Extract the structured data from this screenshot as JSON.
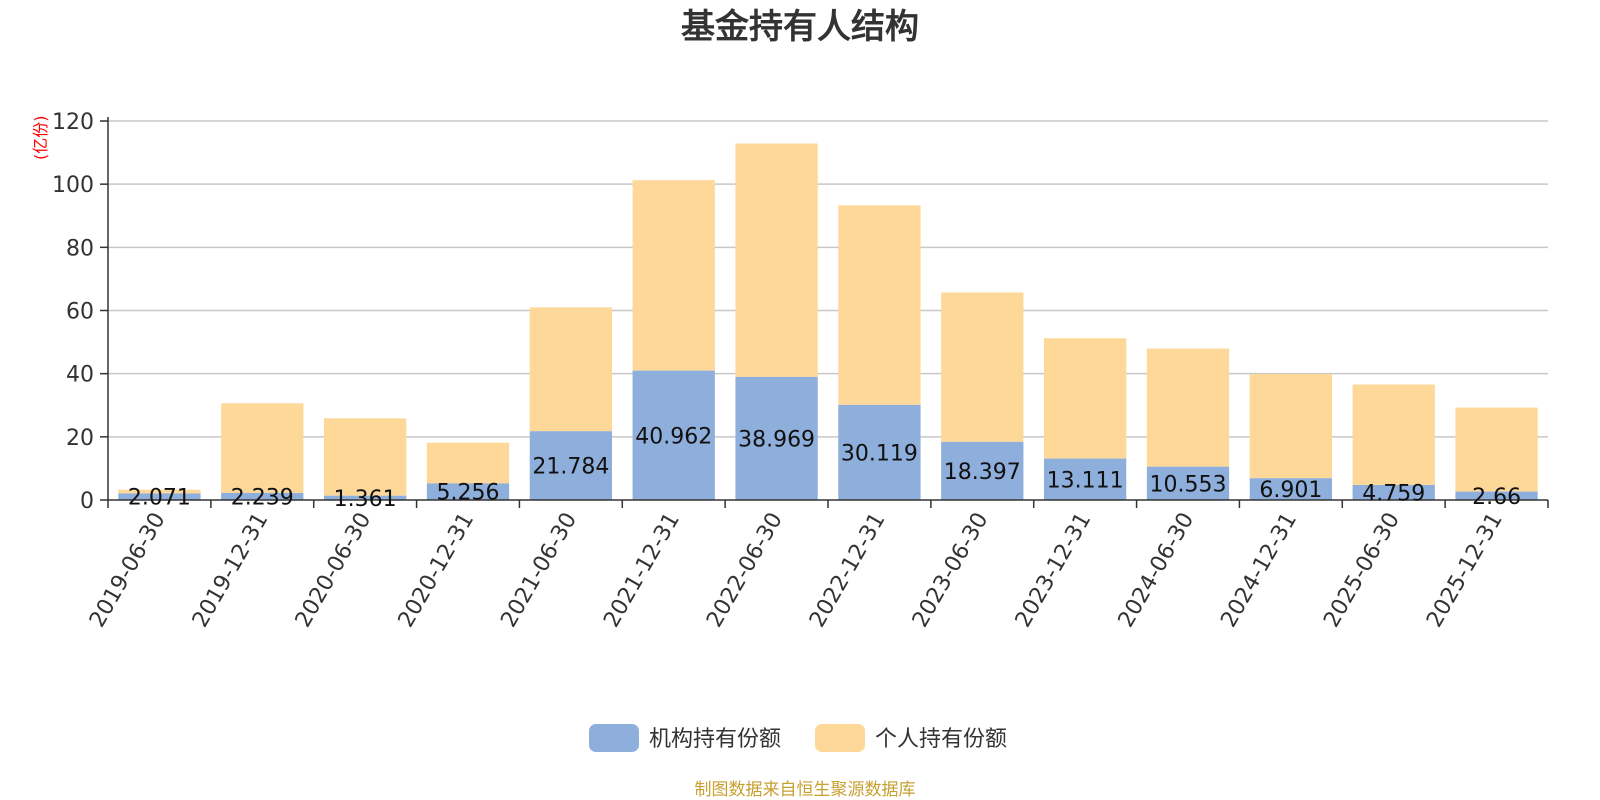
{
  "chart_data": {
    "type": "bar",
    "stacked": true,
    "title": "基金持有人结构",
    "unit_label": "(亿份)",
    "source_text": "制图数据来自恒生聚源数据库",
    "categories": [
      "2019-06-30",
      "2019-12-31",
      "2020-06-30",
      "2020-12-31",
      "2021-06-30",
      "2021-12-31",
      "2022-06-30",
      "2022-12-31",
      "2023-06-30",
      "2023-12-31",
      "2024-06-30",
      "2024-12-31",
      "2025-06-30",
      "2025-12-31"
    ],
    "ylim": [
      0,
      120
    ],
    "yticks": [
      0,
      20,
      40,
      60,
      80,
      100,
      120
    ],
    "grid": true,
    "legend_position": "bottom",
    "series": [
      {
        "name": "机构持有份额",
        "color": "#8eaedb",
        "values": [
          2.071,
          2.239,
          1.361,
          5.256,
          21.784,
          40.962,
          38.969,
          30.119,
          18.397,
          13.111,
          10.553,
          6.901,
          4.759,
          2.66
        ],
        "labels": [
          "2.071",
          "2.239",
          "1.361",
          "5.256",
          "21.784",
          "40.962",
          "38.969",
          "30.119",
          "18.397",
          "13.111",
          "10.553",
          "6.901",
          "4.759",
          "2.66"
        ]
      },
      {
        "name": "个人持有份额",
        "color": "#fed899",
        "values": [
          1.2,
          28.4,
          24.5,
          12.9,
          39.2,
          60.3,
          73.9,
          63.2,
          47.3,
          38.1,
          37.4,
          33.0,
          31.8,
          26.6
        ]
      }
    ]
  }
}
